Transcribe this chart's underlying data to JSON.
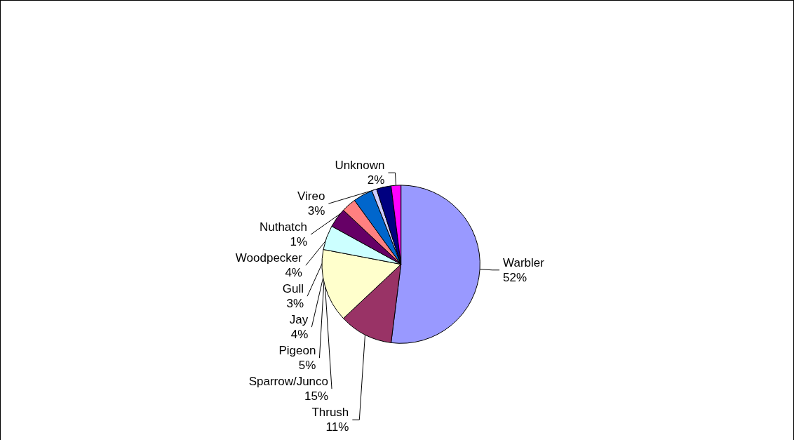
{
  "chart_data": {
    "type": "pie",
    "categories": [
      "Warbler",
      "Thrush",
      "Sparrow/Junco",
      "Pigeon",
      "Jay",
      "Gull",
      "Woodpecker",
      "Nuthatch",
      "Vireo",
      "Unknown"
    ],
    "values": [
      52,
      11,
      15,
      5,
      4,
      3,
      4,
      1,
      3,
      2
    ],
    "value_labels": [
      "52%",
      "11%",
      "15%",
      "5%",
      "4%",
      "3%",
      "4%",
      "1%",
      "3%",
      "2%"
    ],
    "colors": [
      "#9999ff",
      "#993366",
      "#ffffcc",
      "#ccffff",
      "#660066",
      "#ff8080",
      "#0066cc",
      "#ccccff",
      "#000080",
      "#ff00ff"
    ]
  }
}
